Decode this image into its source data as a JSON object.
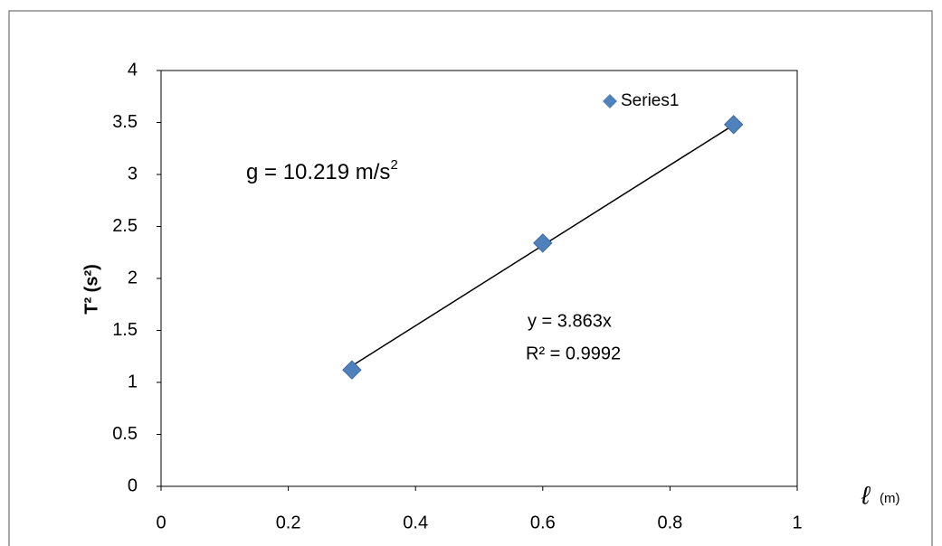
{
  "chart_data": {
    "type": "scatter",
    "series": [
      {
        "name": "Series1",
        "color": "#4f81bd",
        "x": [
          0.3,
          0.6,
          0.9
        ],
        "values": [
          1.12,
          2.34,
          3.48
        ]
      }
    ],
    "trendline": {
      "slope": 3.863,
      "x": [
        0.3,
        0.9
      ],
      "equation": "y = 3.863x",
      "r2_label": "R² = 0.9992"
    },
    "annotation": {
      "text": "g = 10.219 m/s",
      "superscript": "2"
    },
    "y_label": "T² (s²)",
    "x_label": {
      "symbol": "ℓ",
      "unit": "(m)"
    },
    "xlim": [
      0,
      1
    ],
    "xticks": [
      0,
      0.2,
      0.4,
      0.6,
      0.8,
      1
    ],
    "ylim": [
      0,
      4
    ],
    "yticks": [
      0,
      0.5,
      1,
      1.5,
      2,
      2.5,
      3,
      3.5,
      4
    ],
    "legend": "top-right",
    "grid": false
  }
}
